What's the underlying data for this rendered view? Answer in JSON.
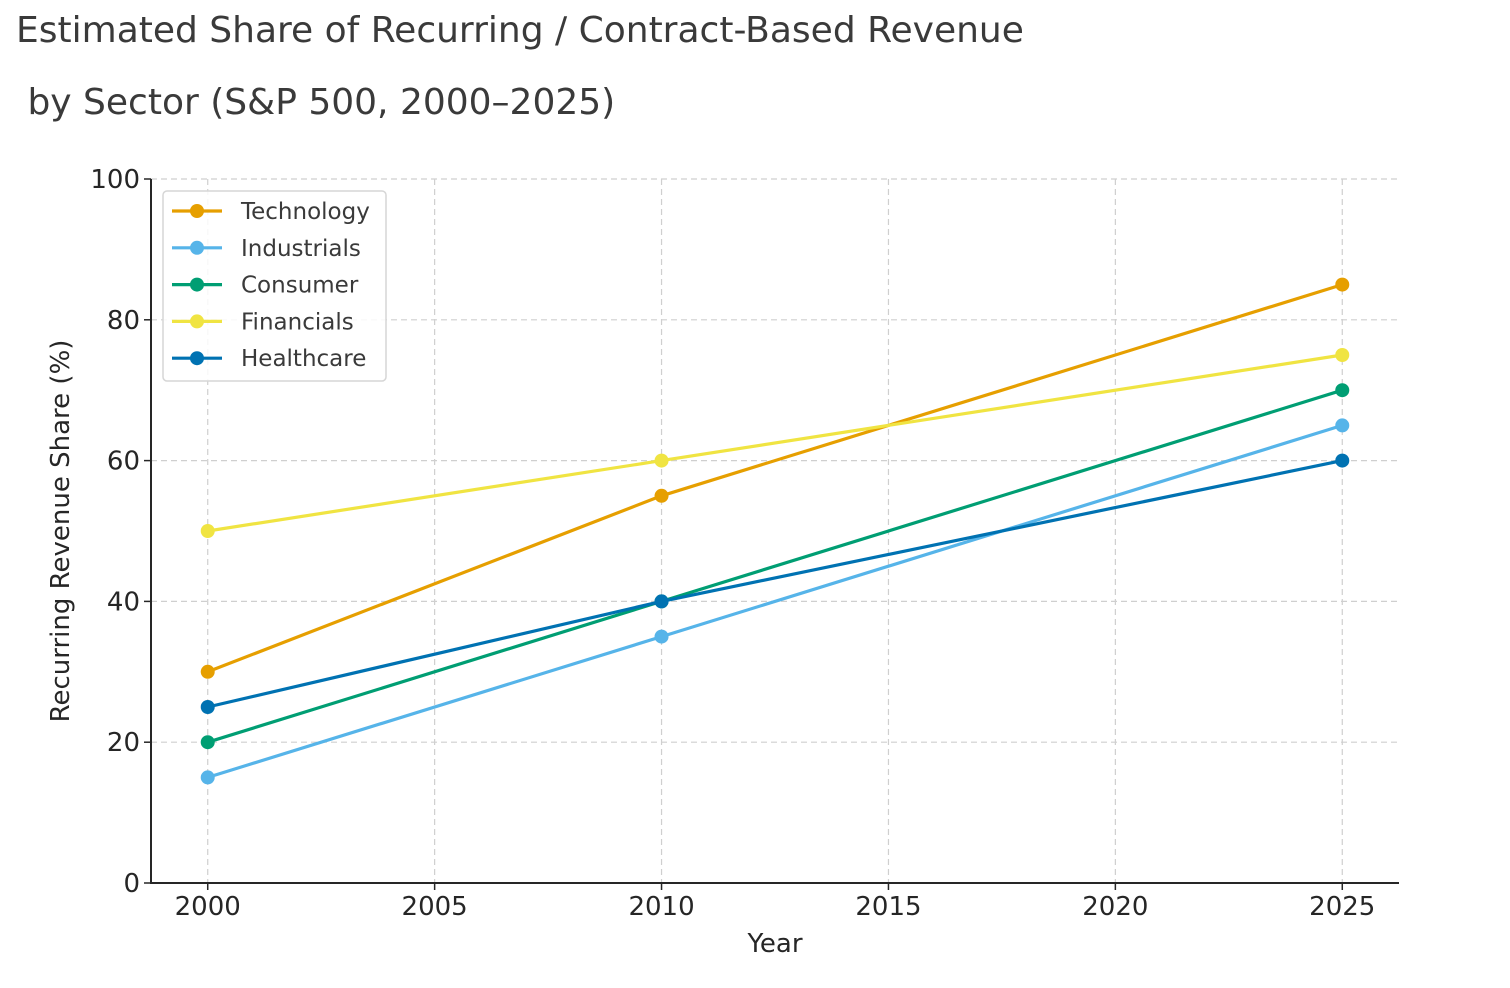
{
  "chart_data": {
    "type": "line",
    "title_line1": "Estimated Share of Recurring / Contract-Based Revenue",
    "title_line2": " by Sector (S&P 500, 2000–2025)",
    "xlabel": "Year",
    "ylabel": "Recurring Revenue Share (%)",
    "x": [
      2000,
      2010,
      2025
    ],
    "xlim": [
      1998.75,
      2026.25
    ],
    "ylim": [
      0,
      100
    ],
    "xticks": [
      2000,
      2005,
      2010,
      2015,
      2020,
      2025
    ],
    "xtick_labels": [
      "2000",
      "2005",
      "2010",
      "2015",
      "2020",
      "2025"
    ],
    "yticks": [
      0,
      20,
      40,
      60,
      80,
      100
    ],
    "ytick_labels": [
      "0",
      "20",
      "40",
      "60",
      "80",
      "100"
    ],
    "grid": true,
    "legend_position": "top-left",
    "series": [
      {
        "name": "Technology",
        "color": "#E69F00",
        "values": [
          30,
          55,
          85
        ]
      },
      {
        "name": "Industrials",
        "color": "#56B4E9",
        "values": [
          15,
          35,
          65
        ]
      },
      {
        "name": "Consumer",
        "color": "#009E73",
        "values": [
          20,
          40,
          70
        ]
      },
      {
        "name": "Financials",
        "color": "#F0E442",
        "values": [
          50,
          60,
          75
        ]
      },
      {
        "name": "Healthcare",
        "color": "#0072B2",
        "values": [
          25,
          40,
          60
        ]
      }
    ]
  }
}
